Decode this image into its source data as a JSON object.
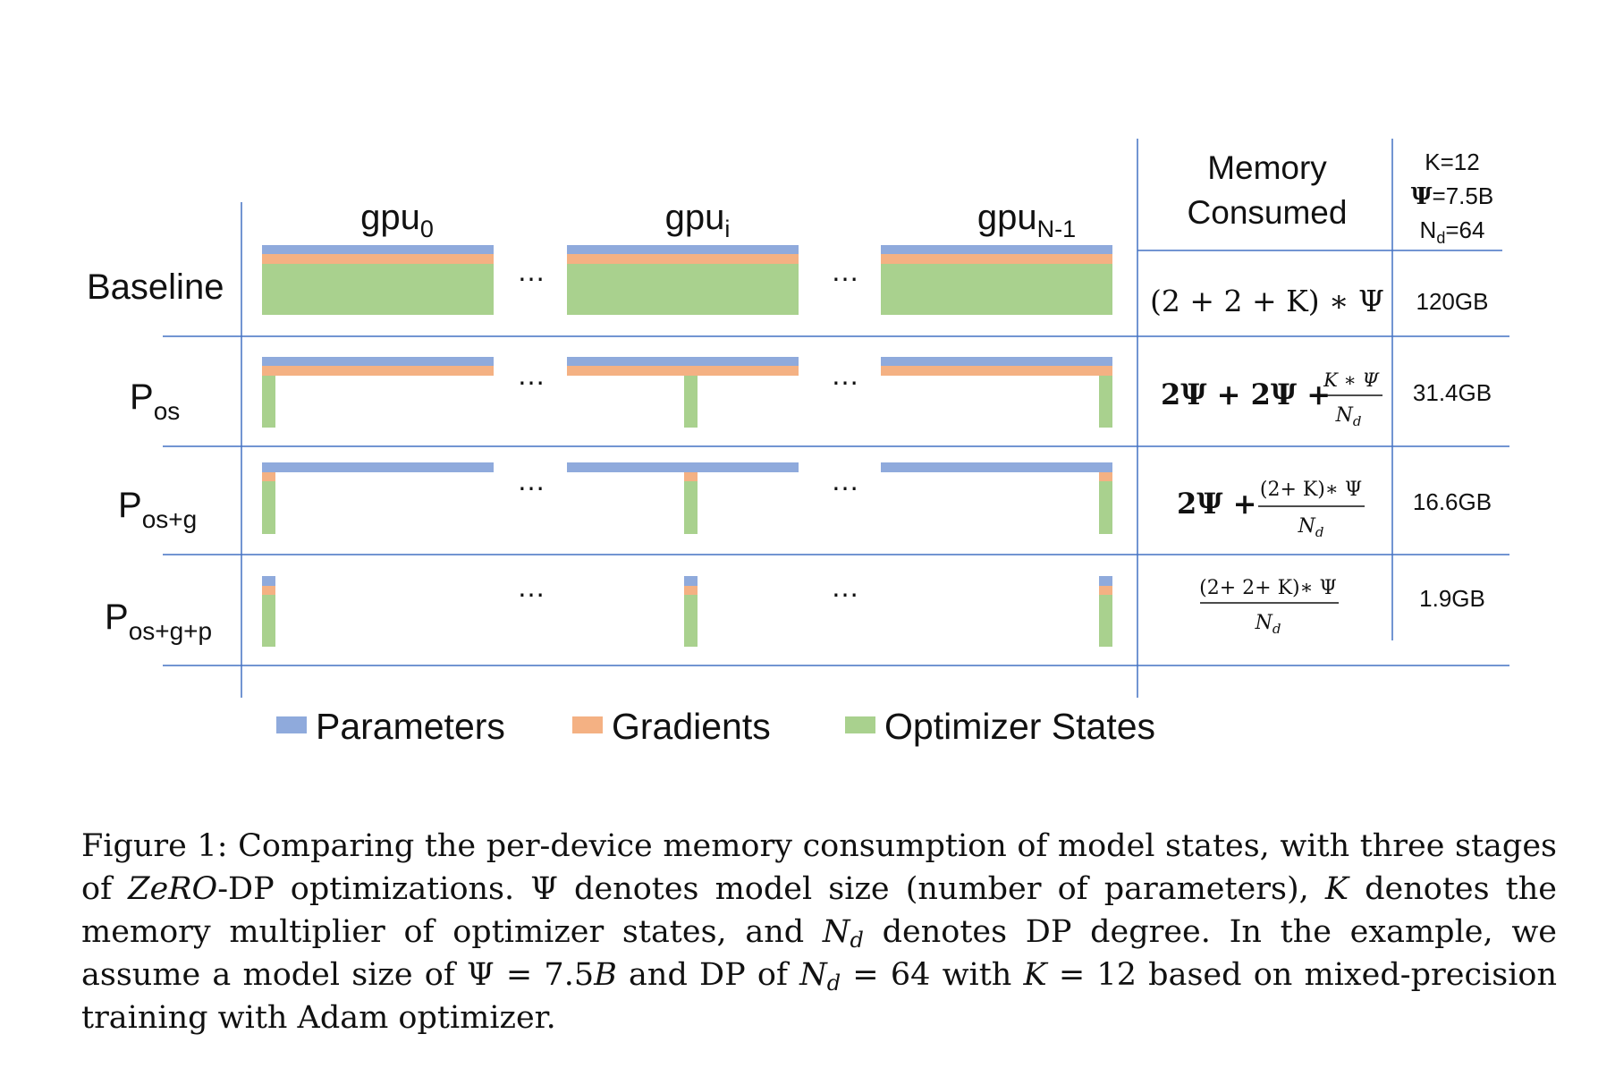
{
  "colors": {
    "parameters": "#8FAADC",
    "gradients": "#F4B183",
    "optimizer_states": "#A9D18E",
    "grid_line": "#4472C4",
    "text": "#111111"
  },
  "header": {
    "gpu_columns": [
      {
        "base": "gpu",
        "sub": "0"
      },
      {
        "base": "gpu",
        "sub": "i"
      },
      {
        "base": "gpu",
        "sub": "N-1"
      }
    ],
    "memory_title_line1": "Memory",
    "memory_title_line2": "Consumed",
    "params": {
      "k": "K=12",
      "psi_symbol": "Ψ",
      "psi_value": "=7.5B",
      "nd_base": "N",
      "nd_sub": "d",
      "nd_value": "=64"
    }
  },
  "ellipsis": "…",
  "rows": [
    {
      "label_main": "Baseline",
      "label_sub": "",
      "formula": "(2 + 2 + K) ∗ Ψ",
      "memory": "120GB",
      "state": "Baseline: parameters, gradients and optimizer states replicated on every GPU"
    },
    {
      "label_main": "P",
      "label_sub": "os",
      "formula_pre": "2Ψ + 2Ψ +",
      "formula_num": "K ∗ Ψ",
      "formula_den": "N",
      "formula_den_sub": "d",
      "memory": "31.4GB"
    },
    {
      "label_main": "P",
      "label_sub": "os+g",
      "formula_pre": "2Ψ +",
      "formula_num": "(2+ K)∗ Ψ",
      "formula_den": "N",
      "formula_den_sub": "d",
      "memory": "16.6GB"
    },
    {
      "label_main": "P",
      "label_sub": "os+g+p",
      "formula_pre": "",
      "formula_num": "(2+ 2+ K)∗ Ψ",
      "formula_den": "N",
      "formula_den_sub": "d",
      "memory": "1.9GB"
    }
  ],
  "legend": [
    {
      "label": "Parameters",
      "color": "#8FAADC"
    },
    {
      "label": "Gradients",
      "color": "#F4B183"
    },
    {
      "label": "Optimizer States",
      "color": "#A9D18E"
    }
  ],
  "caption": {
    "fig_label": "Figure 1:",
    "t1": " Comparing the per-device memory consumption of model states, with three stages of ",
    "zero": "ZeRO",
    "t2": "-DP optimizations. Ψ denotes model size (number of parameters), ",
    "k": "K",
    "t3": " denotes the memory multiplier of optimizer states, and ",
    "nd_base": "N",
    "nd_sub": "d",
    "t4": " denotes DP degree. In the example, we assume a model size of Ψ = 7.5",
    "b": "B",
    "t5": " and DP of ",
    "nd2_base": "N",
    "nd2_sub": "d",
    "t6": " = 64 with ",
    "k2": "K",
    "t7": " = 12 based on mixed-precision training with Adam optimizer."
  }
}
